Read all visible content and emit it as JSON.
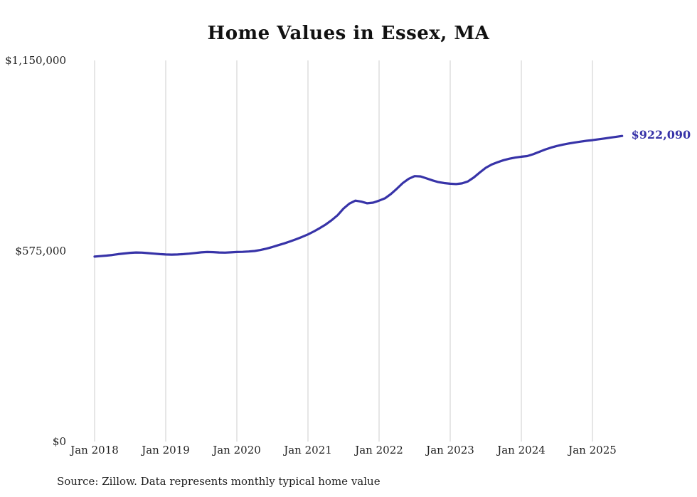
{
  "title": "Home Values in Essex, MA",
  "source_note": "Source: Zillow. Data represents monthly typical home value",
  "chart_data": {
    "type": "line",
    "title": "Home Values in Essex, MA",
    "xlabel": "",
    "ylabel": "",
    "ylim": [
      0,
      1150000
    ],
    "grid": "vertical-only",
    "legend": "none",
    "end_label": "$922,090",
    "final_value": 922090,
    "colors": {
      "line": "#3733a8",
      "grid": "#cccccc",
      "end_label": "#3733a8",
      "axis_text": "#222222"
    },
    "y_ticks": [
      {
        "value": 0,
        "label": "$0"
      },
      {
        "value": 575000,
        "label": "$575,000"
      },
      {
        "value": 1150000,
        "label": "$1,150,000"
      }
    ],
    "x_ticks": [
      {
        "month_index": 0,
        "label": "Jan 2018"
      },
      {
        "month_index": 12,
        "label": "Jan 2019"
      },
      {
        "month_index": 24,
        "label": "Jan 2020"
      },
      {
        "month_index": 36,
        "label": "Jan 2021"
      },
      {
        "month_index": 48,
        "label": "Jan 2022"
      },
      {
        "month_index": 60,
        "label": "Jan 2023"
      },
      {
        "month_index": 72,
        "label": "Jan 2024"
      },
      {
        "month_index": 84,
        "label": "Jan 2025"
      }
    ],
    "x": [
      "2018-01",
      "2018-02",
      "2018-03",
      "2018-04",
      "2018-05",
      "2018-06",
      "2018-07",
      "2018-08",
      "2018-09",
      "2018-10",
      "2018-11",
      "2018-12",
      "2019-01",
      "2019-02",
      "2019-03",
      "2019-04",
      "2019-05",
      "2019-06",
      "2019-07",
      "2019-08",
      "2019-09",
      "2019-10",
      "2019-11",
      "2019-12",
      "2020-01",
      "2020-02",
      "2020-03",
      "2020-04",
      "2020-05",
      "2020-06",
      "2020-07",
      "2020-08",
      "2020-09",
      "2020-10",
      "2020-11",
      "2020-12",
      "2021-01",
      "2021-02",
      "2021-03",
      "2021-04",
      "2021-05",
      "2021-06",
      "2021-07",
      "2021-08",
      "2021-09",
      "2021-10",
      "2021-11",
      "2021-12",
      "2022-01",
      "2022-02",
      "2022-03",
      "2022-04",
      "2022-05",
      "2022-06",
      "2022-07",
      "2022-08",
      "2022-09",
      "2022-10",
      "2022-11",
      "2022-12",
      "2023-01",
      "2023-02",
      "2023-03",
      "2023-04",
      "2023-05",
      "2023-06",
      "2023-07",
      "2023-08",
      "2023-09",
      "2023-10",
      "2023-11",
      "2023-12",
      "2024-01",
      "2024-02",
      "2024-03",
      "2024-04",
      "2024-05",
      "2024-06",
      "2024-07",
      "2024-08",
      "2024-09",
      "2024-10",
      "2024-11",
      "2024-12",
      "2025-01",
      "2025-02",
      "2025-03",
      "2025-04",
      "2025-05",
      "2025-06"
    ],
    "series": [
      {
        "name": "Typical home value",
        "values": [
          558000,
          559500,
          561000,
          563000,
          565500,
          567500,
          569500,
          570500,
          570000,
          568500,
          567000,
          565500,
          564500,
          564000,
          564500,
          565500,
          567000,
          569000,
          571000,
          572000,
          571500,
          570500,
          570000,
          571000,
          572000,
          572500,
          573500,
          575000,
          578000,
          582000,
          587000,
          592500,
          598000,
          604000,
          610500,
          617500,
          625000,
          634000,
          644000,
          655000,
          668000,
          683000,
          703000,
          718000,
          727000,
          724000,
          719000,
          721000,
          727000,
          734000,
          747000,
          763000,
          780000,
          793000,
          801000,
          800000,
          794000,
          788000,
          783000,
          780000,
          778000,
          777000,
          779000,
          785000,
          797000,
          812000,
          826000,
          836000,
          843000,
          849000,
          853500,
          857000,
          859500,
          861500,
          867000,
          874000,
          881000,
          887000,
          892000,
          896000,
          899500,
          902500,
          905000,
          907500,
          909500,
          912000,
          914500,
          917000,
          919500,
          922090
        ]
      }
    ]
  }
}
